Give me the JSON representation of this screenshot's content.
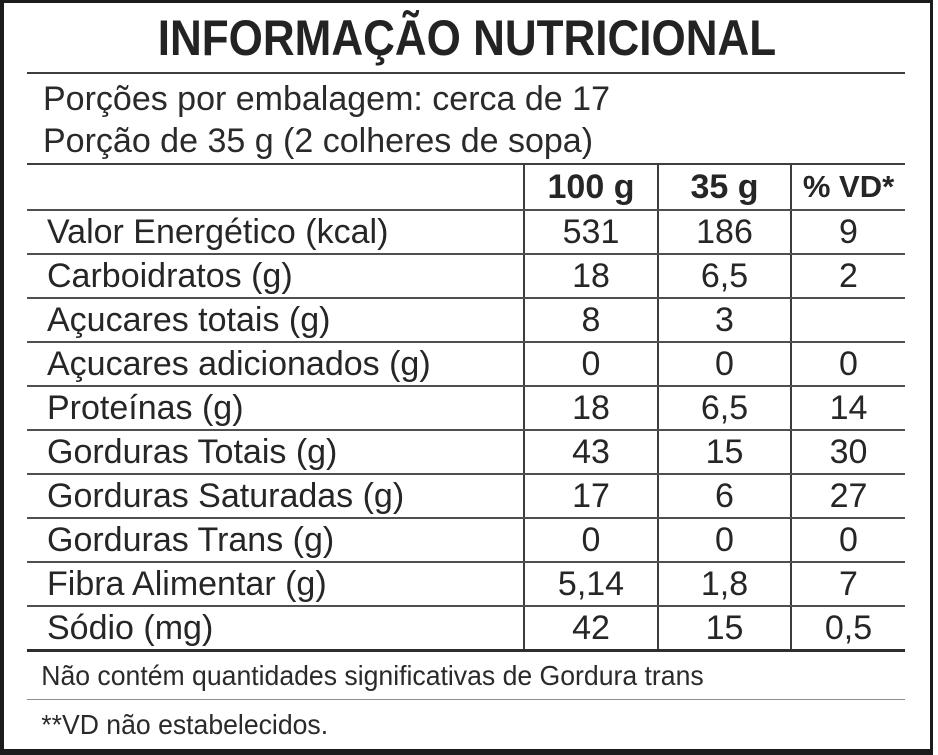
{
  "title": "INFORMAÇÃO NUTRICIONAL",
  "serving_info": {
    "line1": "Porções por embalagem: cerca de 17",
    "line2": "Porção de 35 g (2 colheres de sopa)"
  },
  "table": {
    "columns": [
      "",
      "100 g",
      "35 g",
      "% VD*"
    ],
    "rows": [
      {
        "label": "Valor Energético (kcal)",
        "indent": 0,
        "per100g": "531",
        "per35g": "186",
        "vd": "9"
      },
      {
        "label": "Carboidratos (g)",
        "indent": 0,
        "per100g": "18",
        "per35g": "6,5",
        "vd": "2"
      },
      {
        "label": "Açucares totais (g)",
        "indent": 1,
        "per100g": "8",
        "per35g": "3",
        "vd": ""
      },
      {
        "label": "Açucares adicionados (g)",
        "indent": 2,
        "per100g": "0",
        "per35g": "0",
        "vd": "0"
      },
      {
        "label": "Proteínas (g)",
        "indent": 0,
        "per100g": "18",
        "per35g": "6,5",
        "vd": "14"
      },
      {
        "label": "Gorduras Totais (g)",
        "indent": 0,
        "per100g": "43",
        "per35g": "15",
        "vd": "30"
      },
      {
        "label": "Gorduras Saturadas (g)",
        "indent": 1,
        "per100g": "17",
        "per35g": "6",
        "vd": "27"
      },
      {
        "label": "Gorduras Trans (g)",
        "indent": 1,
        "per100g": "0",
        "per35g": "0",
        "vd": "0"
      },
      {
        "label": "Fibra Alimentar (g)",
        "indent": 0,
        "per100g": "5,14",
        "per35g": "1,8",
        "vd": "7"
      },
      {
        "label": "Sódio (mg)",
        "indent": 0,
        "per100g": "42",
        "per35g": "15",
        "vd": "0,5"
      }
    ]
  },
  "footnotes": [
    "Não contém quantidades significativas de Gordura trans",
    "**VD não estabelecidos."
  ],
  "colors": {
    "text": "#262626",
    "outer_border": "#1c1c1c",
    "row_separator": "#4f4f4f",
    "column_divider": "#3c3c3c",
    "footnote_separator": "#8c8c8c",
    "background": "#ffffff"
  }
}
